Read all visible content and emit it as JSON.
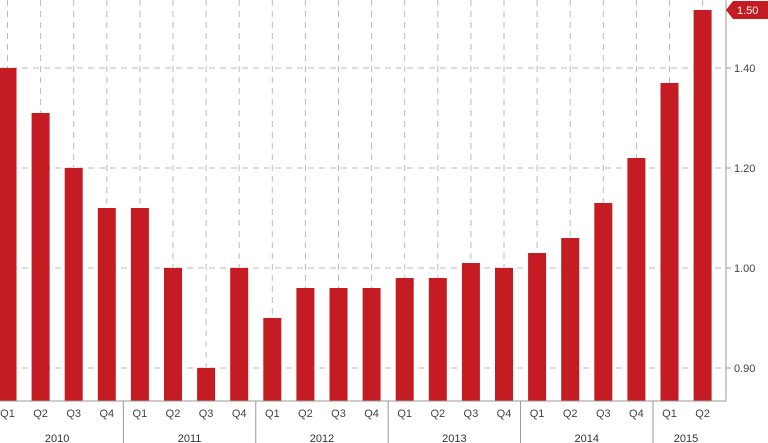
{
  "chart_data": {
    "type": "bar",
    "categories": [
      "Q1",
      "Q2",
      "Q3",
      "Q4",
      "Q1",
      "Q2",
      "Q3",
      "Q4",
      "Q1",
      "Q2",
      "Q3",
      "Q4",
      "Q1",
      "Q2",
      "Q3",
      "Q4",
      "Q1",
      "Q2",
      "Q3",
      "Q4",
      "Q1",
      "Q2"
    ],
    "years": [
      {
        "label": "2010",
        "start": 0,
        "count": 4
      },
      {
        "label": "2011",
        "start": 4,
        "count": 4
      },
      {
        "label": "2012",
        "start": 8,
        "count": 4
      },
      {
        "label": "2013",
        "start": 12,
        "count": 4
      },
      {
        "label": "2014",
        "start": 16,
        "count": 4
      },
      {
        "label": "2015",
        "start": 20,
        "count": 2
      }
    ],
    "values": [
      1.4,
      1.31,
      1.2,
      1.12,
      1.12,
      1.0,
      0.9,
      1.0,
      0.95,
      0.98,
      0.98,
      0.98,
      0.99,
      0.99,
      1.01,
      1.0,
      1.03,
      1.06,
      1.13,
      1.22,
      1.37,
      1.5
    ],
    "y_ticks": [
      "0.90",
      "1.00",
      "1.20",
      "1.40"
    ],
    "y_tick_values": [
      0.9,
      1.0,
      1.2,
      1.4
    ],
    "last_value_label": "1.50",
    "title": "",
    "xlabel": "",
    "ylabel": "",
    "grid": true,
    "y_axis_position": "right",
    "colors": {
      "bar": "#c51b22",
      "grid": "#bbbbbb",
      "axis": "#999999",
      "badge": "#c51b22"
    }
  }
}
